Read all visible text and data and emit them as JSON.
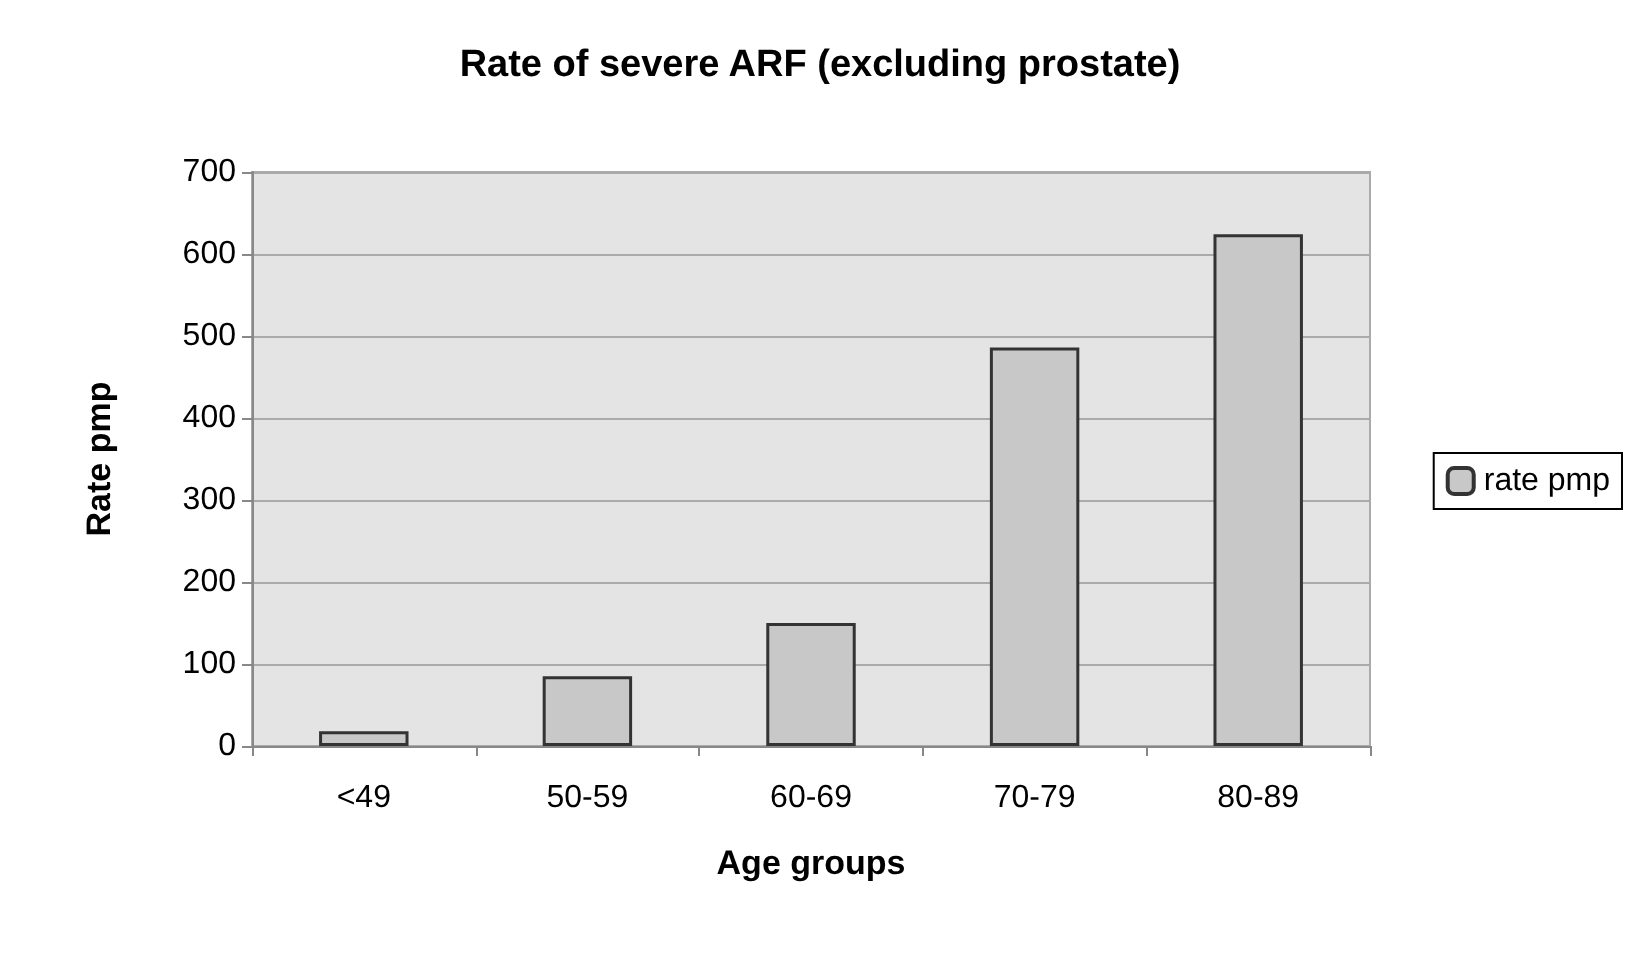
{
  "chart_data": {
    "type": "bar",
    "title": "Rate of severe ARF (excluding prostate)",
    "xlabel": "Age groups",
    "ylabel": "Rate pmp",
    "categories": [
      "<49",
      "50-59",
      "60-69",
      "70-79",
      "80-89"
    ],
    "series": [
      {
        "name": "rate pmp",
        "color": "#c8c8c8",
        "values": [
          18,
          85,
          150,
          486,
          624
        ]
      }
    ],
    "ylim": [
      0,
      700
    ],
    "yticks": [
      0,
      100,
      200,
      300,
      400,
      500,
      600,
      700
    ],
    "grid": "y",
    "legend": "right"
  }
}
